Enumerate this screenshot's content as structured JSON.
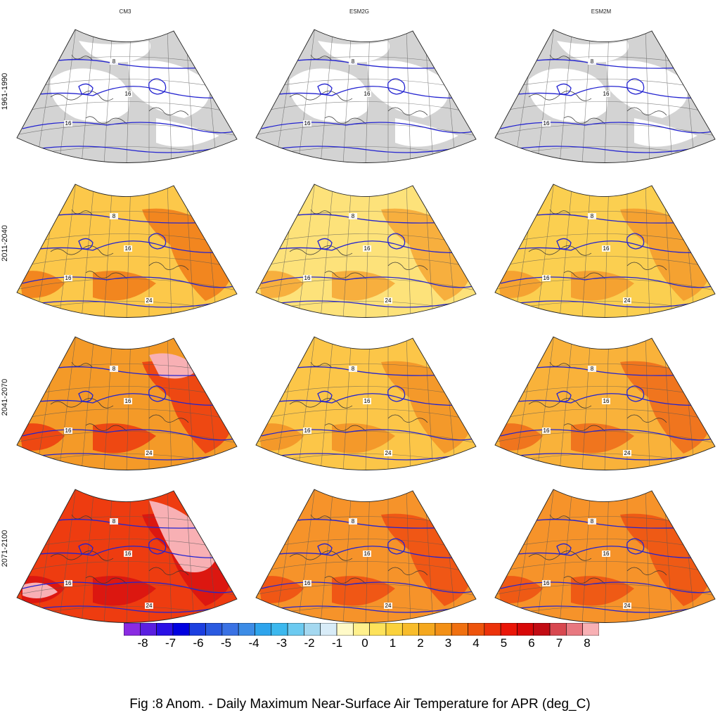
{
  "columns": [
    "CM3",
    "ESM2G",
    "ESM2M"
  ],
  "rows": [
    "1961-1990",
    "2011-2040",
    "2041-2070",
    "2071-2100"
  ],
  "contour_levels": [
    "8",
    "16",
    "24"
  ],
  "colorbar": {
    "ticks": [
      "-8",
      "-7",
      "-6",
      "-5",
      "-4",
      "-3",
      "-2",
      "-1",
      "0",
      "1",
      "2",
      "3",
      "4",
      "5",
      "6",
      "7",
      "8"
    ],
    "colors": [
      "#8a2be2",
      "#5a1fe0",
      "#2a10e6",
      "#0000e0",
      "#1c3fe0",
      "#2a5ae0",
      "#3a72e4",
      "#3c8ce6",
      "#2ea4ec",
      "#3cb8ee",
      "#6ccaf0",
      "#a4d8f0",
      "#d8ecf8",
      "#fffac8",
      "#fff08c",
      "#fde25a",
      "#fbd23c",
      "#f8bc2a",
      "#f5a81e",
      "#f39016",
      "#f07010",
      "#ee540c",
      "#ec320a",
      "#ea1608",
      "#d80808",
      "#c20c14",
      "#d84850",
      "#e87880",
      "#f8b0b4"
    ]
  },
  "caption": "Fig :8  Anom.  - Daily Maximum Near-Surface Air Temperature for APR (deg_C)",
  "colors": {
    "contour": "#2323d0",
    "land_mask": "#d3d3d3",
    "coast": "#333333"
  }
}
